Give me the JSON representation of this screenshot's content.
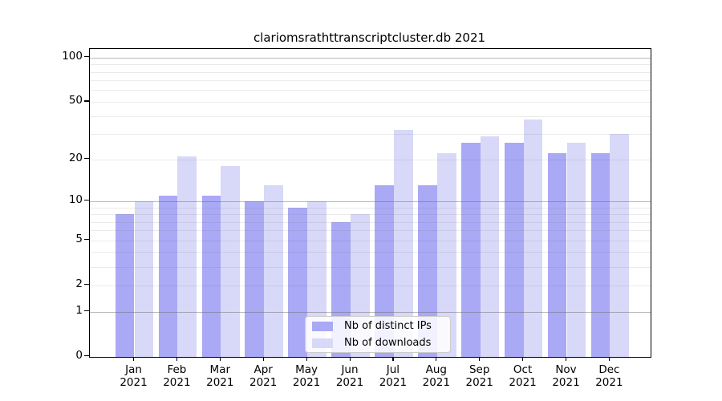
{
  "chart_data": {
    "type": "bar",
    "title": "clariomsrathttranscriptcluster.db 2021",
    "categories": [
      "Jan",
      "Feb",
      "Mar",
      "Apr",
      "May",
      "Jun",
      "Jul",
      "Aug",
      "Sep",
      "Oct",
      "Nov",
      "Dec"
    ],
    "year": "2021",
    "series": [
      {
        "name": "Nb of distinct IPs",
        "color": "#a9a9f5",
        "values": [
          8,
          11,
          11,
          10,
          9,
          7,
          13,
          13,
          26,
          26,
          22,
          22
        ]
      },
      {
        "name": "Nb of downloads",
        "color": "#d8d8f8",
        "values": [
          10,
          21,
          18,
          13,
          10,
          8,
          32,
          22,
          29,
          38,
          26,
          30
        ]
      }
    ],
    "xlabel": "",
    "ylabel": "",
    "yscale": "log1p",
    "ylim": [
      0,
      115
    ],
    "yticks": [
      0,
      1,
      2,
      5,
      10,
      20,
      50,
      100
    ],
    "major_gridlines": [
      1,
      10,
      100
    ],
    "minor_gridlines": [
      2,
      3,
      4,
      5,
      6,
      7,
      8,
      9,
      20,
      30,
      40,
      50,
      60,
      70,
      80,
      90
    ],
    "grid": "on",
    "legend_position": "lower center"
  }
}
